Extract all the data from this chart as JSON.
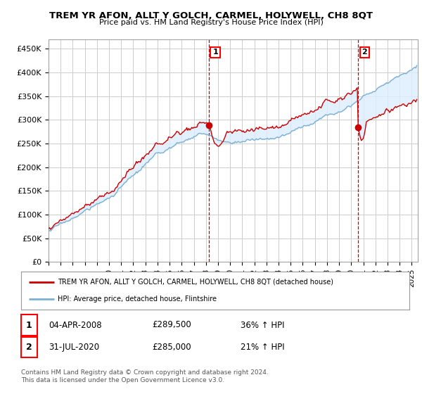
{
  "title": "TREM YR AFON, ALLT Y GOLCH, CARMEL, HOLYWELL, CH8 8QT",
  "subtitle": "Price paid vs. HM Land Registry's House Price Index (HPI)",
  "ylabel_ticks": [
    "£0",
    "£50K",
    "£100K",
    "£150K",
    "£200K",
    "£250K",
    "£300K",
    "£350K",
    "£400K",
    "£450K"
  ],
  "ytick_vals": [
    0,
    50000,
    100000,
    150000,
    200000,
    250000,
    300000,
    350000,
    400000,
    450000
  ],
  "ylim": [
    0,
    470000
  ],
  "xlim_start": 1995.0,
  "xlim_end": 2025.5,
  "sale1_date": 2008.25,
  "sale1_price": 289500,
  "sale2_date": 2020.58,
  "sale2_price": 285000,
  "sale1_label": "1",
  "sale2_label": "2",
  "sale1_text": "04-APR-2008",
  "sale1_amount": "£289,500",
  "sale1_hpi": "36% ↑ HPI",
  "sale2_text": "31-JUL-2020",
  "sale2_amount": "£285,000",
  "sale2_hpi": "21% ↑ HPI",
  "legend_house": "TREM YR AFON, ALLT Y GOLCH, CARMEL, HOLYWELL, CH8 8QT (detached house)",
  "legend_hpi": "HPI: Average price, detached house, Flintshire",
  "footnote": "Contains HM Land Registry data © Crown copyright and database right 2024.\nThis data is licensed under the Open Government Licence v3.0.",
  "house_color": "#cc0000",
  "hpi_color": "#7bafd4",
  "fill_color": "#ddeeff",
  "vline_color": "#cc0000",
  "background_color": "#ffffff",
  "grid_color": "#cccccc"
}
